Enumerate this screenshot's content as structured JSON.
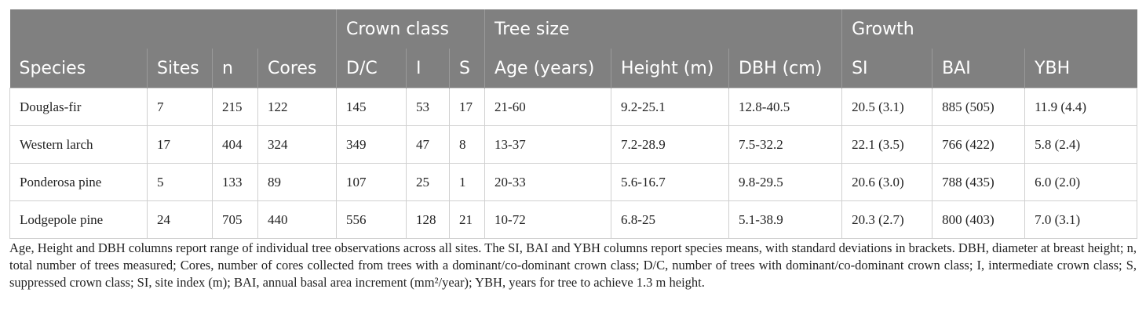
{
  "table": {
    "groups": [
      "Crown class",
      "Tree size",
      "Growth"
    ],
    "columns": [
      "Species",
      "Sites",
      "n",
      "Cores",
      "D/C",
      "I",
      "S",
      "Age (years)",
      "Height (m)",
      "DBH (cm)",
      "SI",
      "BAI",
      "YBH"
    ],
    "rows": [
      [
        "Douglas-fir",
        "7",
        "215",
        "122",
        "145",
        "53",
        "17",
        "21-60",
        "9.2-25.1",
        "12.8-40.5",
        "20.5 (3.1)",
        "885 (505)",
        "11.9 (4.4)"
      ],
      [
        "Western larch",
        "17",
        "404",
        "324",
        "349",
        "47",
        "8",
        "13-37",
        "7.2-28.9",
        "7.5-32.2",
        "22.1 (3.5)",
        "766 (422)",
        "5.8 (2.4)"
      ],
      [
        "Ponderosa pine",
        "5",
        "133",
        "89",
        "107",
        "25",
        "1",
        "20-33",
        "5.6-16.7",
        "9.8-29.5",
        "20.6 (3.0)",
        "788 (435)",
        "6.0 (2.0)"
      ],
      [
        "Lodgepole pine",
        "24",
        "705",
        "440",
        "556",
        "128",
        "21",
        "10-72",
        "6.8-25",
        "5.1-38.9",
        "20.3 (2.7)",
        "800 (403)",
        "7.0 (3.1)"
      ]
    ]
  },
  "footnote": "Age, Height and DBH columns report range of individual tree observations across all sites. The SI, BAI and YBH columns report species means, with standard deviations in brackets. DBH, diameter at breast height; n, total number of trees measured; Cores, number of cores collected from trees with a dominant/co-dominant crown class; D/C, number of trees with dominant/co-dominant crown class; I, intermediate crown class; S, suppressed crown class; SI, site index (m); BAI, annual basal area increment (mm²/year); YBH, years for tree to achieve 1.3 m height."
}
